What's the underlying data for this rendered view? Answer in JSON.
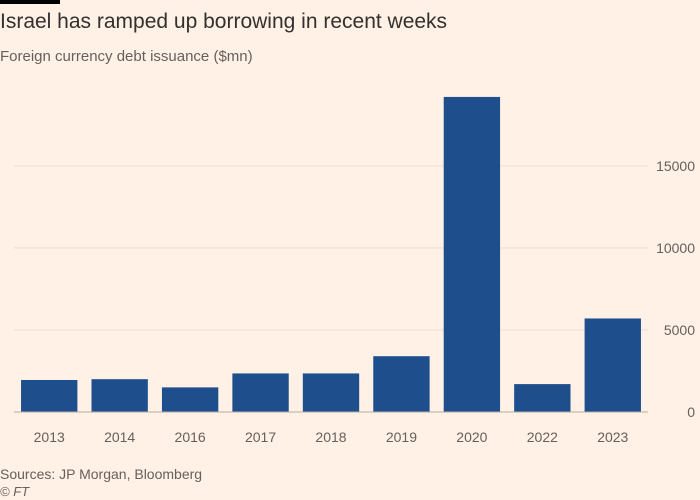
{
  "header": {
    "title": "Israel has ramped up borrowing in recent weeks",
    "subtitle": "Foreign currency debt issuance ($mn)"
  },
  "footer": {
    "source": "Sources: JP Morgan, Bloomberg",
    "credit": "© FT"
  },
  "colors": {
    "background": "#FFF1E5",
    "bar": "#1F4E8C",
    "grid": "#E9DED4",
    "axis_text": "#66605C"
  },
  "chart_data": {
    "type": "bar",
    "title": "Israel has ramped up borrowing in recent weeks",
    "subtitle": "Foreign currency debt issuance ($mn)",
    "xlabel": "",
    "ylabel": "",
    "categories": [
      "2013",
      "2014",
      "2016",
      "2017",
      "2018",
      "2019",
      "2020",
      "2022",
      "2023"
    ],
    "values": [
      1950,
      2000,
      1500,
      2350,
      2350,
      3400,
      19200,
      1700,
      5700
    ],
    "ylim": [
      0,
      19500
    ],
    "yticks": [
      0,
      5000,
      10000,
      15000
    ],
    "ytick_labels": [
      "0",
      "5000",
      "10000",
      "15000"
    ],
    "y_axis_position": "right",
    "grid": true,
    "legend": "none"
  }
}
